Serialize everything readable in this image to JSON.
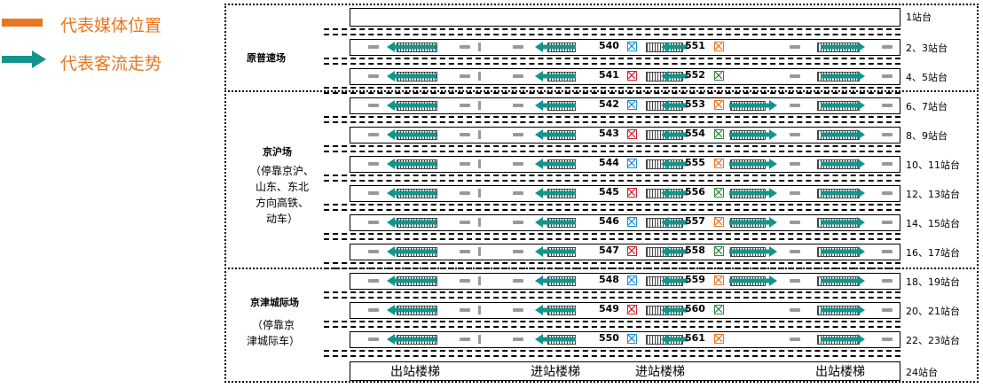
{
  "legend": {
    "media_text": "代表媒体位置",
    "flow_text": "代表客流走势",
    "media_color": "#e87722",
    "flow_color": "#13958b"
  },
  "sections": [
    {
      "label": "原普速场",
      "sub": ""
    },
    {
      "label": "京沪场",
      "sub": "（停靠京沪、|山东、东北|方向高铁、|动车）"
    },
    {
      "label": "京津城际场",
      "sub": "（停靠京|津城际车）"
    }
  ],
  "platforms": [
    "1站台",
    "2、3站台",
    "4、5站台",
    "6、7站台",
    "8、9站台",
    "10、11站台",
    "12、13站台",
    "14、15站台",
    "16、17站台",
    "18、19站台",
    "20、21站台",
    "22、23站台",
    "24站台"
  ],
  "media": [
    {
      "left": "540",
      "right": "551",
      "lc": "#1b8fd6",
      "rc": "#e87722"
    },
    {
      "left": "541",
      "right": "552",
      "lc": "#d4202a",
      "rc": "#2e8b3e"
    },
    {
      "left": "542",
      "right": "553",
      "lc": "#1b8fd6",
      "rc": "#e87722"
    },
    {
      "left": "543",
      "right": "554",
      "lc": "#d4202a",
      "rc": "#2e8b3e"
    },
    {
      "left": "544",
      "right": "555",
      "lc": "#1b8fd6",
      "rc": "#e87722"
    },
    {
      "left": "545",
      "right": "556",
      "lc": "#d4202a",
      "rc": "#2e8b3e"
    },
    {
      "left": "546",
      "right": "557",
      "lc": "#1b8fd6",
      "rc": "#e87722"
    },
    {
      "left": "547",
      "right": "558",
      "lc": "#d4202a",
      "rc": "#2e8b3e"
    },
    {
      "left": "548",
      "right": "559",
      "lc": "#1b8fd6",
      "rc": "#e87722"
    },
    {
      "left": "549",
      "right": "560",
      "lc": "#d4202a",
      "rc": "#2e8b3e"
    },
    {
      "left": "550",
      "right": "561",
      "lc": "#1b8fd6",
      "rc": "#e87722"
    }
  ],
  "stairs": [
    "出站楼梯",
    "进站楼梯",
    "进站楼梯",
    "出站楼梯"
  ]
}
